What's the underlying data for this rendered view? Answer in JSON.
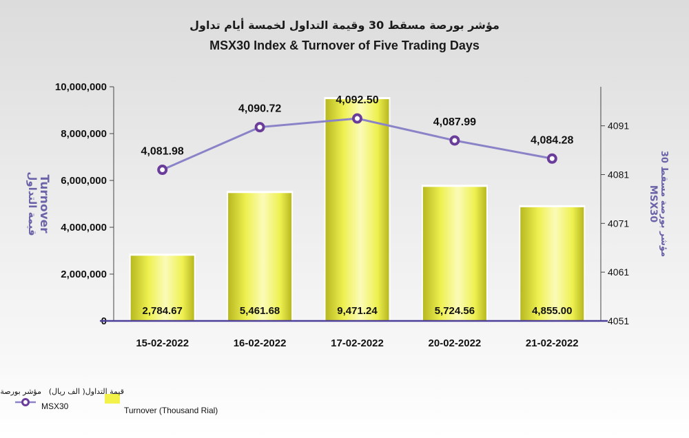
{
  "colors": {
    "bar_light": "#fbfbb8",
    "bar_mid": "#eef050",
    "bar_dark": "#b8b820",
    "line": "#8a83c8",
    "marker": "#6a3d9a",
    "axis_baseline": "#4b3f99",
    "right_axis_title": "#6b63a8"
  },
  "chart_data": {
    "type": "bar",
    "title": "MSX30 Index & Turnover of Five Trading Days",
    "title_ar": "مؤشر بورصة مسقط 30 وقيمة التداول لخمسة أيام تداول",
    "categories": [
      "15-02-2022",
      "16-02-2022",
      "17-02-2022",
      "20-02-2022",
      "21-02-2022"
    ],
    "series": [
      {
        "name": "Turnover (Thousand Rial)",
        "name_ar": "قيمة التداول( الف ريال)",
        "type": "bar",
        "axis": "left",
        "values": [
          2784.67,
          5461.68,
          9471.24,
          5724.56,
          4855.0
        ],
        "labels": [
          "2,784.67",
          "5,461.68",
          "9,471.24",
          "5,724.56",
          "4,855.00"
        ]
      },
      {
        "name": "MSX30",
        "name_ar": "مؤشر بورصة مسقط 30",
        "type": "line",
        "axis": "right",
        "values": [
          4081.98,
          4090.72,
          4092.5,
          4087.99,
          4084.28
        ],
        "labels": [
          "4,081.98",
          "4,090.72",
          "4,092.50",
          "4,087.99",
          "4,084.28"
        ]
      }
    ],
    "left_axis": {
      "label": "Turnover",
      "label_ar": "قيمة التداول",
      "ylim": [
        0,
        10000000
      ],
      "ticks": [
        0,
        2000000,
        4000000,
        6000000,
        8000000,
        10000000
      ],
      "tick_labels": [
        "0",
        "2,000,000",
        "4,000,000",
        "6,000,000",
        "8,000,000",
        "10,000,000"
      ],
      "bar_value_scale": 1000
    },
    "right_axis": {
      "label": "MSX30",
      "label_ar": "مؤشر بورصة مسقط 30",
      "ylim": [
        4051,
        4099
      ],
      "ticks": [
        4051,
        4061,
        4071,
        4081,
        4091
      ],
      "tick_labels": [
        "4051",
        "4061",
        "4071",
        "4081",
        "4091"
      ]
    },
    "grid": false,
    "legend_position": "bottom-left"
  }
}
